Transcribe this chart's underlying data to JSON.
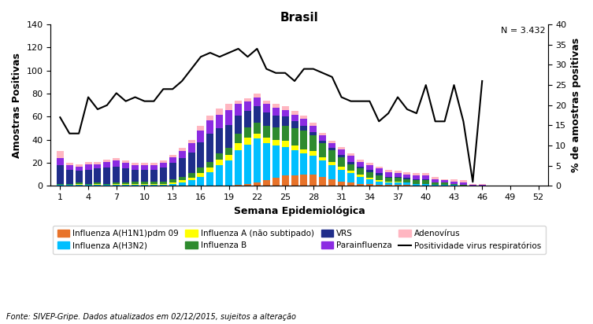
{
  "title": "Brasil",
  "n_label": "N = 3.432",
  "xlabel": "Semana Epidemiológica",
  "ylabel_left": "Amostras Positivas",
  "ylabel_right": "% de amostras positivas",
  "fonte": "Fonte: SIVEP-Gripe. Dados atualizados em 02/12/2015, sujeitos a alteração",
  "weeks": [
    1,
    2,
    3,
    4,
    5,
    6,
    7,
    8,
    9,
    10,
    11,
    12,
    13,
    14,
    15,
    16,
    17,
    18,
    19,
    20,
    21,
    22,
    23,
    24,
    25,
    26,
    27,
    28,
    29,
    30,
    31,
    32,
    33,
    34,
    35,
    36,
    37,
    38,
    39,
    40,
    41,
    42,
    43,
    44,
    45,
    46
  ],
  "xtick_labels": [
    "1",
    "4",
    "7",
    "10",
    "13",
    "16",
    "19",
    "22",
    "25",
    "28",
    "31",
    "34",
    "37",
    "40",
    "43",
    "46",
    "49",
    "52"
  ],
  "xtick_positions": [
    1,
    4,
    7,
    10,
    13,
    16,
    19,
    22,
    25,
    28,
    31,
    34,
    37,
    40,
    43,
    46,
    49,
    52
  ],
  "ylim_left": [
    0,
    140
  ],
  "ylim_right": [
    0,
    40
  ],
  "yticks_left": [
    0,
    20,
    40,
    60,
    80,
    100,
    120,
    140
  ],
  "yticks_right": [
    0,
    5,
    10,
    15,
    20,
    25,
    30,
    35,
    40
  ],
  "colors": {
    "H1N1": "#E8732A",
    "H3N2": "#00BFFF",
    "InflA_ns": "#FFFF00",
    "InflB": "#2E8B2E",
    "VRS": "#1F2D8A",
    "Para": "#8B2BE2",
    "Adeno": "#FFB6C1",
    "line": "#000000"
  },
  "H1N1": [
    0,
    0,
    0,
    0,
    0,
    0,
    0,
    0,
    0,
    0,
    0,
    0,
    0,
    0,
    0,
    0,
    0,
    0,
    0,
    1,
    2,
    3,
    5,
    7,
    9,
    9,
    10,
    10,
    8,
    6,
    4,
    3,
    2,
    2,
    1,
    1,
    1,
    1,
    0,
    0,
    0,
    0,
    0,
    0,
    0,
    0
  ],
  "H3N2": [
    1,
    1,
    1,
    1,
    1,
    1,
    1,
    1,
    1,
    1,
    1,
    1,
    2,
    3,
    5,
    8,
    12,
    18,
    22,
    30,
    34,
    38,
    32,
    28,
    25,
    22,
    18,
    16,
    14,
    12,
    10,
    8,
    6,
    4,
    3,
    2,
    2,
    2,
    2,
    2,
    1,
    1,
    1,
    0,
    0,
    0
  ],
  "InflA_ns": [
    0,
    0,
    1,
    0,
    1,
    0,
    1,
    1,
    1,
    1,
    1,
    1,
    1,
    2,
    2,
    3,
    4,
    5,
    5,
    6,
    6,
    4,
    5,
    5,
    5,
    4,
    4,
    4,
    3,
    3,
    3,
    2,
    2,
    1,
    1,
    1,
    1,
    0,
    0,
    0,
    0,
    0,
    0,
    0,
    0,
    0
  ],
  "InflB": [
    1,
    1,
    1,
    1,
    1,
    1,
    1,
    1,
    2,
    2,
    2,
    2,
    3,
    3,
    4,
    5,
    5,
    5,
    6,
    8,
    9,
    10,
    10,
    11,
    13,
    15,
    16,
    14,
    12,
    10,
    8,
    6,
    5,
    5,
    4,
    3,
    3,
    3,
    3,
    3,
    2,
    2,
    1,
    1,
    0,
    0
  ],
  "VRS": [
    16,
    12,
    10,
    12,
    12,
    14,
    14,
    12,
    10,
    10,
    10,
    12,
    14,
    16,
    18,
    22,
    24,
    22,
    20,
    16,
    14,
    14,
    12,
    10,
    8,
    6,
    4,
    3,
    2,
    2,
    2,
    2,
    2,
    2,
    2,
    1,
    1,
    1,
    1,
    1,
    0,
    0,
    0,
    0,
    0,
    0
  ],
  "Para": [
    6,
    4,
    4,
    5,
    4,
    5,
    5,
    5,
    4,
    4,
    4,
    4,
    5,
    6,
    8,
    10,
    12,
    12,
    13,
    10,
    8,
    8,
    7,
    7,
    6,
    6,
    6,
    5,
    5,
    4,
    5,
    5,
    4,
    4,
    4,
    4,
    3,
    3,
    3,
    3,
    3,
    2,
    2,
    2,
    1,
    1
  ],
  "Adeno": [
    6,
    2,
    2,
    2,
    2,
    2,
    2,
    2,
    2,
    2,
    2,
    2,
    2,
    3,
    3,
    4,
    4,
    5,
    5,
    3,
    3,
    3,
    3,
    3,
    3,
    3,
    3,
    3,
    2,
    2,
    2,
    2,
    2,
    2,
    2,
    2,
    2,
    2,
    2,
    2,
    2,
    1,
    2,
    2,
    1,
    1
  ],
  "positivity": [
    17,
    13,
    13,
    22,
    19,
    20,
    23,
    21,
    22,
    21,
    21,
    24,
    24,
    26,
    29,
    32,
    33,
    32,
    33,
    34,
    32,
    34,
    29,
    28,
    28,
    26,
    29,
    29,
    28,
    27,
    22,
    21,
    21,
    21,
    16,
    18,
    22,
    19,
    18,
    25,
    16,
    16,
    25,
    16,
    1,
    26
  ]
}
